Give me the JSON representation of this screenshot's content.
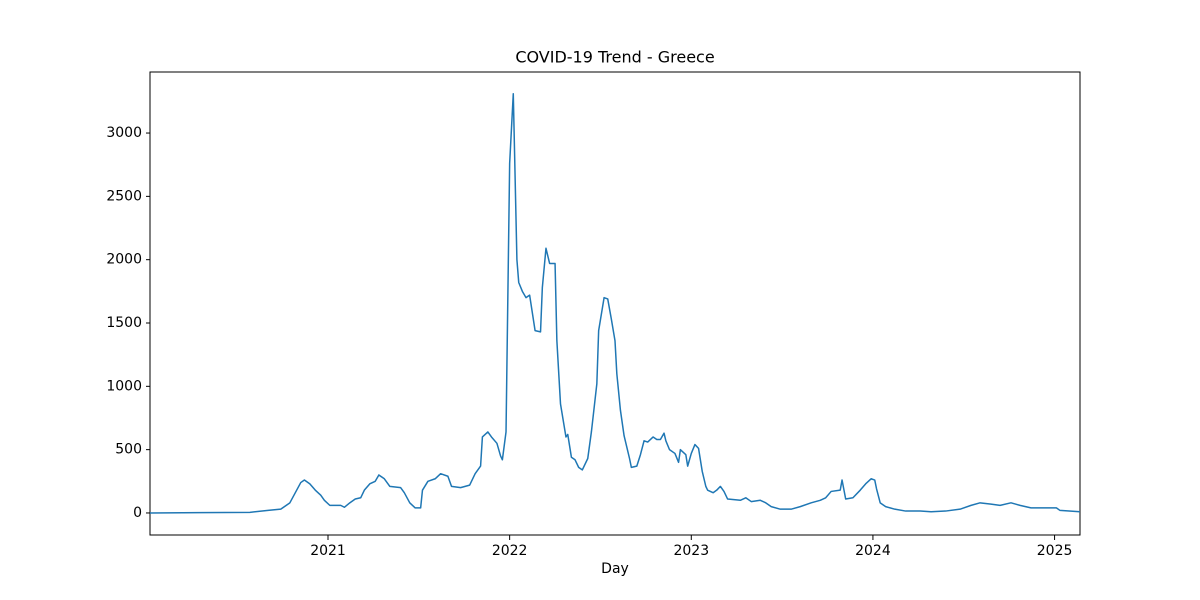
{
  "chart_data": {
    "type": "line",
    "title": "COVID-19 Trend - Greece",
    "x_label": "Day",
    "x": [
      2020.02,
      2020.29,
      2020.57,
      2020.67,
      2020.74,
      2020.79,
      2020.82,
      2020.85,
      2020.87,
      2020.9,
      2020.93,
      2020.96,
      2020.98,
      2021.01,
      2021.07,
      2021.09,
      2021.12,
      2021.15,
      2021.18,
      2021.2,
      2021.23,
      2021.26,
      2021.28,
      2021.31,
      2021.34,
      2021.4,
      2021.42,
      2021.45,
      2021.48,
      2021.51,
      2021.52,
      2021.55,
      2021.59,
      2021.62,
      2021.66,
      2021.68,
      2021.73,
      2021.78,
      2021.81,
      2021.84,
      2021.85,
      2021.88,
      2021.9,
      2021.93,
      2021.95,
      2021.96,
      2021.98,
      2022.0,
      2022.02,
      2022.04,
      2022.05,
      2022.07,
      2022.09,
      2022.11,
      2022.14,
      2022.17,
      2022.18,
      2022.2,
      2022.22,
      2022.25,
      2022.26,
      2022.28,
      2022.31,
      2022.32,
      2022.34,
      2022.36,
      2022.38,
      2022.4,
      2022.43,
      2022.45,
      2022.48,
      2022.49,
      2022.52,
      2022.54,
      2022.56,
      2022.58,
      2022.59,
      2022.61,
      2022.63,
      2022.64,
      2022.66,
      2022.67,
      2022.7,
      2022.72,
      2022.74,
      2022.76,
      2022.79,
      2022.81,
      2022.83,
      2022.85,
      2022.86,
      2022.88,
      2022.91,
      2022.93,
      2022.94,
      2022.97,
      2022.98,
      2023.0,
      2023.02,
      2023.04,
      2023.06,
      2023.08,
      2023.09,
      2023.12,
      2023.14,
      2023.16,
      2023.18,
      2023.2,
      2023.27,
      2023.3,
      2023.33,
      2023.38,
      2023.41,
      2023.44,
      2023.49,
      2023.55,
      2023.6,
      2023.66,
      2023.71,
      2023.74,
      2023.77,
      2023.82,
      2023.83,
      2023.85,
      2023.89,
      2023.93,
      2023.96,
      2023.99,
      2024.01,
      2024.02,
      2024.04,
      2024.07,
      2024.12,
      2024.18,
      2024.26,
      2024.32,
      2024.4,
      2024.48,
      2024.54,
      2024.59,
      2024.65,
      2024.7,
      2024.76,
      2024.81,
      2024.87,
      2024.95,
      2025.01,
      2025.03,
      2025.14
    ],
    "series": [
      {
        "name": "Greece",
        "color": "#1f77b4",
        "values": [
          0,
          3,
          5,
          20,
          30,
          80,
          160,
          240,
          260,
          230,
          180,
          140,
          100,
          60,
          60,
          45,
          80,
          110,
          120,
          180,
          230,
          250,
          300,
          270,
          210,
          200,
          160,
          80,
          40,
          40,
          180,
          250,
          270,
          310,
          290,
          210,
          200,
          220,
          310,
          370,
          600,
          640,
          600,
          550,
          450,
          420,
          640,
          2760,
          3310,
          2000,
          1820,
          1750,
          1700,
          1720,
          1440,
          1430,
          1780,
          2090,
          1970,
          1970,
          1360,
          860,
          600,
          620,
          440,
          420,
          360,
          340,
          430,
          640,
          1020,
          1440,
          1700,
          1690,
          1530,
          1360,
          1100,
          810,
          610,
          550,
          430,
          360,
          370,
          460,
          570,
          560,
          600,
          580,
          580,
          630,
          570,
          500,
          470,
          400,
          500,
          460,
          370,
          470,
          540,
          510,
          330,
          210,
          180,
          160,
          180,
          210,
          170,
          110,
          100,
          120,
          90,
          100,
          80,
          50,
          30,
          30,
          50,
          80,
          100,
          120,
          170,
          180,
          260,
          110,
          120,
          180,
          230,
          270,
          260,
          190,
          80,
          50,
          30,
          15,
          15,
          10,
          15,
          30,
          60,
          80,
          70,
          60,
          80,
          60,
          40,
          40,
          40,
          20,
          10
        ]
      }
    ],
    "xlim": [
      2020.02,
      2025.14
    ],
    "xticks": [
      2021,
      2022,
      2023,
      2024,
      2025
    ],
    "ylim": [
      -174,
      3482
    ],
    "yticks": [
      0,
      500,
      1000,
      1500,
      2000,
      2500,
      3000
    ]
  }
}
